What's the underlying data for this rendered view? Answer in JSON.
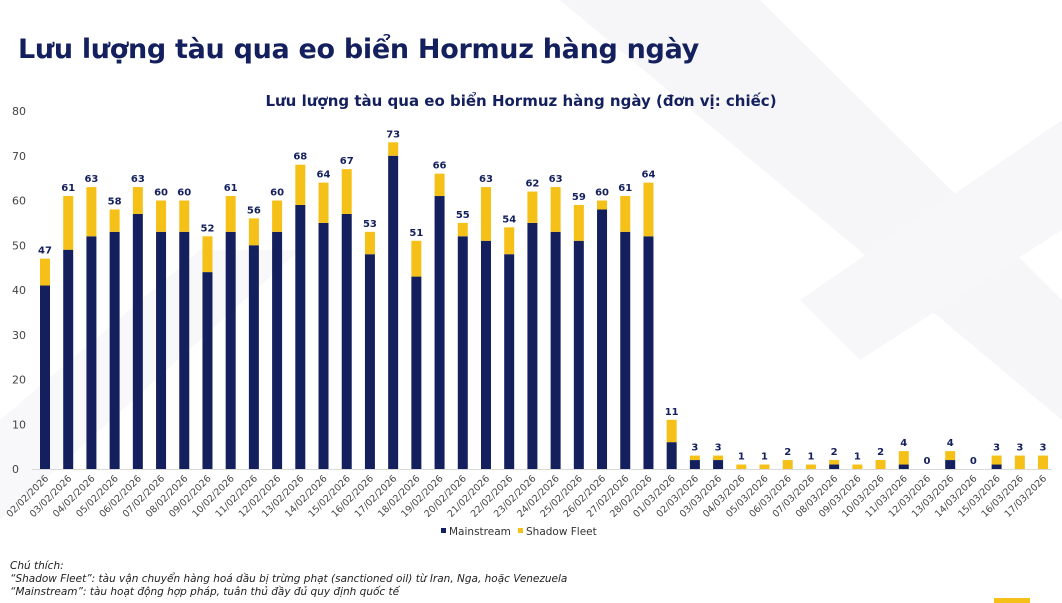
{
  "header": {
    "title": "Lưu lượng tàu qua eo biển Hormuz hàng ngày"
  },
  "chart_data": {
    "type": "bar",
    "stacked": true,
    "title": "Lưu lượng tàu qua eo biển Hormuz hàng ngày (đơn vị: chiếc)",
    "xlabel": "",
    "ylabel": "",
    "ylim": [
      0,
      80
    ],
    "yticks": [
      0,
      10,
      20,
      30,
      40,
      50,
      60,
      70,
      80
    ],
    "grid": false,
    "legend_position": "bottom",
    "categories": [
      "02/02/2026",
      "03/02/2026",
      "04/02/2026",
      "05/02/2026",
      "06/02/2026",
      "07/02/2026",
      "08/02/2026",
      "09/02/2026",
      "10/02/2026",
      "11/02/2026",
      "12/02/2026",
      "13/02/2026",
      "14/02/2026",
      "15/02/2026",
      "16/02/2026",
      "17/02/2026",
      "18/02/2026",
      "19/02/2026",
      "20/02/2026",
      "21/02/2026",
      "22/02/2026",
      "23/02/2026",
      "24/02/2026",
      "25/02/2026",
      "26/02/2026",
      "27/02/2026",
      "28/02/2026",
      "01/03/2026",
      "02/03/2026",
      "03/03/2026",
      "04/03/2026",
      "05/03/2026",
      "06/03/2026",
      "07/03/2026",
      "08/03/2026",
      "09/03/2026",
      "10/03/2026",
      "11/03/2026",
      "12/03/2026",
      "13/03/2026",
      "14/03/2026",
      "15/03/2026",
      "16/03/2026",
      "17/03/2026"
    ],
    "series": [
      {
        "name": "Mainstream",
        "color": "#14205e",
        "values": [
          41,
          49,
          52,
          53,
          57,
          53,
          53,
          44,
          53,
          50,
          53,
          59,
          55,
          57,
          48,
          70,
          43,
          61,
          52,
          51,
          48,
          55,
          53,
          51,
          58,
          53,
          52,
          6,
          2,
          2,
          0,
          0,
          0,
          0,
          1,
          0,
          0,
          1,
          0,
          2,
          0,
          1,
          0,
          0
        ]
      },
      {
        "name": "Shadow Fleet",
        "color": "#f5c018",
        "values": [
          6,
          12,
          11,
          5,
          6,
          7,
          7,
          8,
          8,
          6,
          7,
          9,
          9,
          10,
          5,
          3,
          8,
          5,
          3,
          12,
          6,
          7,
          10,
          8,
          2,
          8,
          12,
          5,
          1,
          1,
          1,
          1,
          2,
          1,
          1,
          1,
          2,
          3,
          0,
          2,
          0,
          2,
          3,
          3
        ]
      }
    ],
    "totals": [
      47,
      61,
      63,
      58,
      63,
      60,
      60,
      52,
      61,
      56,
      60,
      68,
      64,
      67,
      53,
      73,
      51,
      66,
      55,
      63,
      54,
      62,
      63,
      59,
      60,
      61,
      64,
      11,
      3,
      3,
      1,
      1,
      2,
      1,
      2,
      1,
      2,
      4,
      0,
      4,
      0,
      3,
      3,
      3
    ]
  },
  "notes": {
    "heading": "Chú thích:",
    "shadow": "“Shadow Fleet”: tàu vận chuyển hàng hoá dầu bị trừng phạt (sanctioned oil) từ Iran, Nga, hoặc Venezuela",
    "mainstream": "“Mainstream”: tàu hoạt động hợp pháp, tuân thủ đầy đủ quy định quốc tế"
  }
}
